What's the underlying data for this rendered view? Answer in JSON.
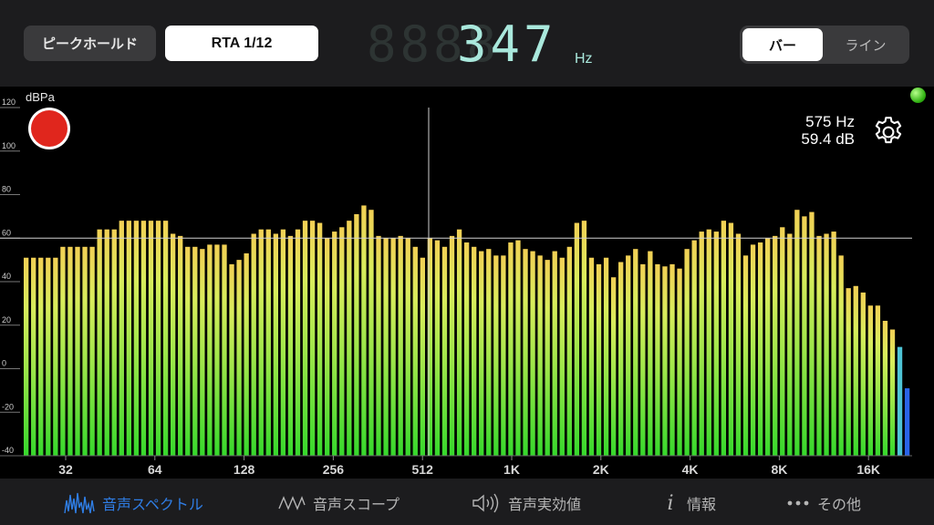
{
  "header": {
    "peak_hold_label": "ピークホールド",
    "rta_label": "RTA 1/12",
    "frequency_ghost": "8888",
    "frequency_value": "347",
    "frequency_unit": "Hz",
    "view_options": [
      "バー",
      "ライン"
    ]
  },
  "readout": {
    "frequency": "575 Hz",
    "level": "59.4 dB"
  },
  "colors": {
    "accent": "#2f7ee6",
    "record": "#e0261d",
    "display": "#a9e8dc"
  },
  "icons": {
    "record": "record-icon",
    "settings": "gear-icon",
    "status": "status-led-icon"
  },
  "chart_data": {
    "type": "bar",
    "ylabel": "dBPa",
    "ylim": [
      -40,
      120
    ],
    "yticks": [
      -40,
      -20,
      0,
      20,
      40,
      60,
      80,
      100,
      120
    ],
    "xticks": [
      "32",
      "64",
      "128",
      "256",
      "512",
      "1K",
      "2K",
      "4K",
      "8K",
      "16K"
    ],
    "grid": false,
    "cursor_db": 60,
    "values": [
      51,
      51,
      51,
      51,
      51,
      56,
      56,
      56,
      56,
      56,
      64,
      64,
      64,
      68,
      68,
      68,
      68,
      68,
      68,
      68,
      62,
      61,
      56,
      56,
      55,
      57,
      57,
      57,
      48,
      50,
      53,
      62,
      64,
      64,
      62,
      64,
      61,
      64,
      68,
      68,
      67,
      60,
      63,
      65,
      68,
      71,
      75,
      73,
      61,
      60,
      60,
      61,
      60,
      56,
      51,
      60,
      59,
      56,
      61,
      64,
      58,
      56,
      54,
      55,
      52,
      52,
      58,
      59,
      55,
      54,
      52,
      50,
      54,
      51,
      56,
      67,
      68,
      51,
      48,
      51,
      42,
      49,
      52,
      55,
      48,
      54,
      48,
      47,
      48,
      46,
      55,
      59,
      63,
      64,
      63,
      68,
      67,
      62,
      52,
      57,
      58,
      60,
      61,
      65,
      62,
      73,
      70,
      72,
      61,
      62,
      63,
      52,
      37,
      38,
      35,
      29,
      29,
      22,
      18,
      10,
      -9
    ]
  },
  "tabs": [
    {
      "label": "音声スペクトル",
      "icon": "spectrum-icon",
      "active": true
    },
    {
      "label": "音声スコープ",
      "icon": "waveform-icon",
      "active": false
    },
    {
      "label": "音声実効値",
      "icon": "speaker-icon",
      "active": false
    },
    {
      "label": "情報",
      "icon": "info-icon",
      "active": false
    },
    {
      "label": "その他",
      "icon": "more-icon",
      "active": false
    }
  ]
}
